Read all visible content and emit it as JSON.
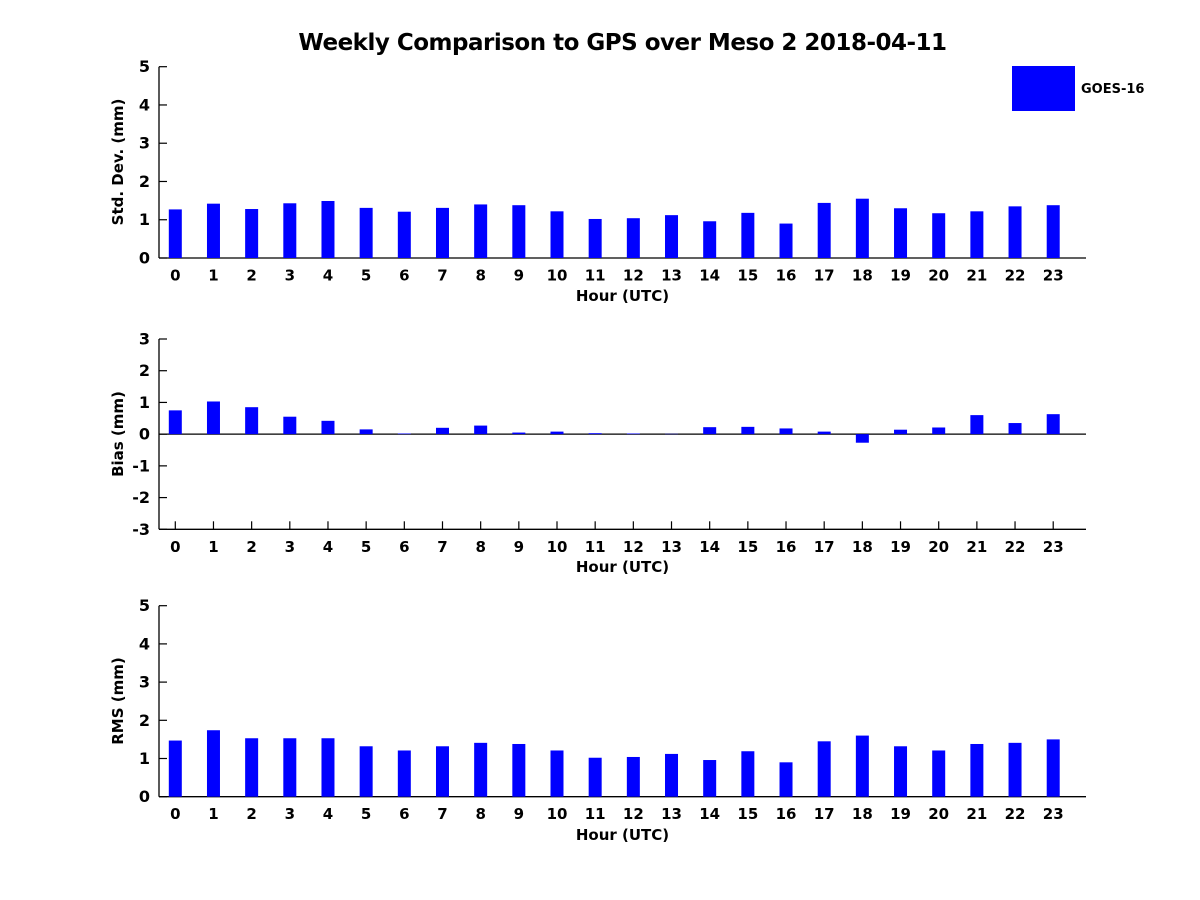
{
  "title": "Weekly Comparison to GPS over Meso 2 2018-04-11",
  "legend": {
    "label": "GOES-16",
    "color": "#0000ff"
  },
  "bar_color": "#0000ff",
  "axis_color": "#000000",
  "chart_data": [
    {
      "type": "bar",
      "name": "std-dev",
      "title": "",
      "ylabel": "Std. Dev. (mm)",
      "xlabel": "Hour (UTC)",
      "ylim": [
        0,
        5
      ],
      "yticks": [
        0,
        1,
        2,
        3,
        4,
        5
      ],
      "grid": false,
      "legend_position": "upper-right-outside",
      "categories": [
        "0",
        "1",
        "2",
        "3",
        "4",
        "5",
        "6",
        "7",
        "8",
        "9",
        "10",
        "11",
        "12",
        "13",
        "14",
        "15",
        "16",
        "17",
        "18",
        "19",
        "20",
        "21",
        "22",
        "23"
      ],
      "series": [
        {
          "name": "GOES-16",
          "values": [
            1.27,
            1.42,
            1.28,
            1.43,
            1.49,
            1.31,
            1.21,
            1.31,
            1.4,
            1.38,
            1.22,
            1.02,
            1.04,
            1.12,
            0.96,
            1.18,
            0.9,
            1.44,
            1.55,
            1.3,
            1.17,
            1.22,
            1.35,
            1.38
          ]
        }
      ]
    },
    {
      "type": "bar",
      "name": "bias",
      "title": "",
      "ylabel": "Bias (mm)",
      "xlabel": "Hour (UTC)",
      "ylim": [
        -3,
        3
      ],
      "yticks": [
        -3,
        -2,
        -1,
        0,
        1,
        2,
        3
      ],
      "grid": false,
      "zero_line": true,
      "categories": [
        "0",
        "1",
        "2",
        "3",
        "4",
        "5",
        "6",
        "7",
        "8",
        "9",
        "10",
        "11",
        "12",
        "13",
        "14",
        "15",
        "16",
        "17",
        "18",
        "19",
        "20",
        "21",
        "22",
        "23"
      ],
      "series": [
        {
          "name": "GOES-16",
          "values": [
            0.75,
            1.03,
            0.85,
            0.55,
            0.42,
            0.15,
            0.02,
            0.2,
            0.27,
            0.05,
            0.08,
            0.03,
            0.02,
            0.01,
            0.22,
            0.23,
            0.18,
            0.08,
            -0.27,
            0.14,
            0.21,
            0.6,
            0.35,
            0.63
          ]
        }
      ]
    },
    {
      "type": "bar",
      "name": "rms",
      "title": "",
      "ylabel": "RMS (mm)",
      "xlabel": "Hour (UTC)",
      "ylim": [
        0,
        5
      ],
      "yticks": [
        0,
        1,
        2,
        3,
        4,
        5
      ],
      "grid": false,
      "categories": [
        "0",
        "1",
        "2",
        "3",
        "4",
        "5",
        "6",
        "7",
        "8",
        "9",
        "10",
        "11",
        "12",
        "13",
        "14",
        "15",
        "16",
        "17",
        "18",
        "19",
        "20",
        "21",
        "22",
        "23"
      ],
      "series": [
        {
          "name": "GOES-16",
          "values": [
            1.47,
            1.74,
            1.53,
            1.53,
            1.53,
            1.32,
            1.21,
            1.32,
            1.41,
            1.38,
            1.21,
            1.02,
            1.04,
            1.12,
            0.96,
            1.19,
            0.9,
            1.45,
            1.6,
            1.32,
            1.21,
            1.38,
            1.41,
            1.5
          ]
        }
      ]
    }
  ]
}
